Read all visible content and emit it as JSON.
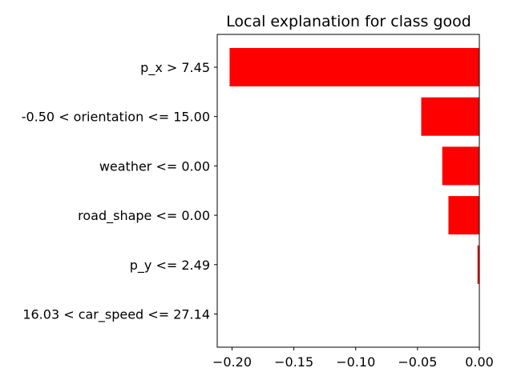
{
  "chart_data": {
    "type": "bar",
    "orientation": "horizontal",
    "title": "Local explanation for class good",
    "xlabel": "",
    "ylabel": "",
    "categories": [
      "p_x > 7.45",
      "-0.50 < orientation <= 15.00",
      "weather <= 0.00",
      "road_shape <= 0.00",
      "p_y <= 2.49",
      "16.03 < car_speed <= 27.14"
    ],
    "values": [
      -0.202,
      -0.047,
      -0.03,
      -0.025,
      -0.0015,
      0.0
    ],
    "xlim": [
      -0.212,
      0.0
    ],
    "xticks": [
      -0.2,
      -0.15,
      -0.1,
      -0.05,
      0.0
    ],
    "xtick_labels": [
      "−0.20",
      "−0.15",
      "−0.10",
      "−0.05",
      "0.00"
    ],
    "bar_color": "#ff0000",
    "grid": false
  }
}
